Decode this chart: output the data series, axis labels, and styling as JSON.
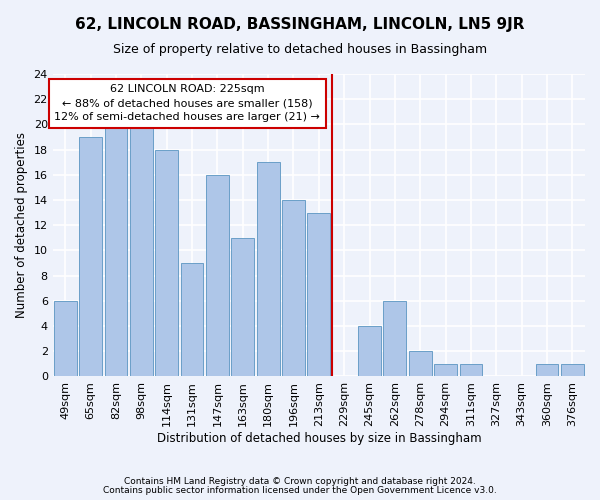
{
  "title": "62, LINCOLN ROAD, BASSINGHAM, LINCOLN, LN5 9JR",
  "subtitle": "Size of property relative to detached houses in Bassingham",
  "xlabel": "Distribution of detached houses by size in Bassingham",
  "ylabel": "Number of detached properties",
  "categories": [
    "49sqm",
    "65sqm",
    "82sqm",
    "98sqm",
    "114sqm",
    "131sqm",
    "147sqm",
    "163sqm",
    "180sqm",
    "196sqm",
    "213sqm",
    "229sqm",
    "245sqm",
    "262sqm",
    "278sqm",
    "294sqm",
    "311sqm",
    "327sqm",
    "343sqm",
    "360sqm",
    "376sqm"
  ],
  "values": [
    6,
    19,
    20,
    20,
    18,
    9,
    16,
    11,
    17,
    14,
    13,
    0,
    4,
    6,
    2,
    1,
    1,
    0,
    0,
    1,
    1
  ],
  "bar_color": "#aec6e8",
  "bar_edge_color": "#6a9fc8",
  "vline_x": 10.5,
  "annotation_title": "62 LINCOLN ROAD: 225sqm",
  "annotation_line1": "← 88% of detached houses are smaller (158)",
  "annotation_line2": "12% of semi-detached houses are larger (21) →",
  "annotation_box_color": "#ffffff",
  "annotation_box_edge": "#cc0000",
  "vline_color": "#cc0000",
  "footer1": "Contains HM Land Registry data © Crown copyright and database right 2024.",
  "footer2": "Contains public sector information licensed under the Open Government Licence v3.0.",
  "background_color": "#eef2fb",
  "grid_color": "#ffffff",
  "ylim": [
    0,
    24
  ],
  "yticks": [
    0,
    2,
    4,
    6,
    8,
    10,
    12,
    14,
    16,
    18,
    20,
    22,
    24
  ],
  "title_fontsize": 11,
  "subtitle_fontsize": 9,
  "axis_label_fontsize": 8.5,
  "tick_fontsize": 8,
  "annotation_fontsize": 8,
  "footer_fontsize": 6.5
}
